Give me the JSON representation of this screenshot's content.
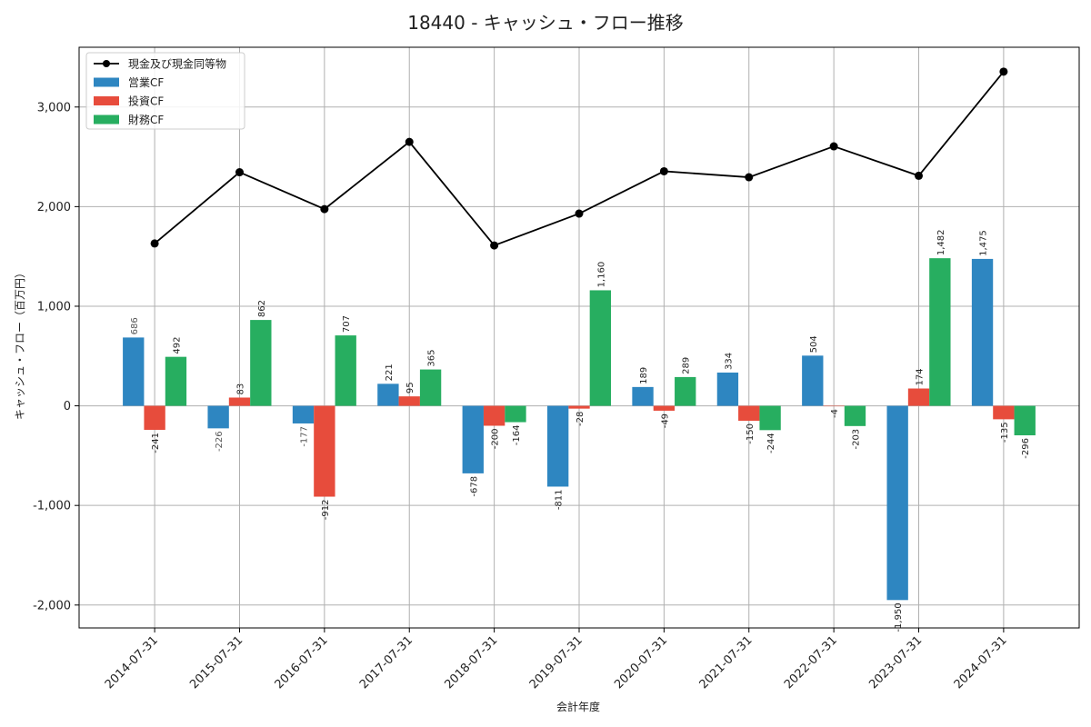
{
  "chart_data": {
    "type": "bar",
    "title": "18440 - キャッシュ・フロー推移",
    "xlabel": "会計年度",
    "ylabel": "キャッシュ・フロー（百万円）",
    "categories": [
      "2014-07-31",
      "2015-07-31",
      "2016-07-31",
      "2017-07-31",
      "2018-07-31",
      "2019-07-31",
      "2020-07-31",
      "2021-07-31",
      "2022-07-31",
      "2023-07-31",
      "2024-07-31"
    ],
    "series": [
      {
        "name": "営業CF",
        "type": "bar",
        "color": "#2e86c1",
        "values": [
          686,
          -226,
          -177,
          221,
          -678,
          -811,
          189,
          334,
          504,
          -1950,
          1475
        ],
        "labels": [
          "686",
          "-226",
          "-177",
          "221",
          "-678",
          "-811",
          "189",
          "334",
          "504",
          "-1,950",
          "1,475"
        ]
      },
      {
        "name": "投資CF",
        "type": "bar",
        "color": "#e74c3c",
        "values": [
          -241,
          83,
          -912,
          95,
          -200,
          -28,
          -49,
          -150,
          -4,
          174,
          -135
        ],
        "labels": [
          "-241",
          "83",
          "-912",
          "95",
          "-200",
          "-28",
          "-49",
          "-150",
          "-4",
          "174",
          "-135"
        ]
      },
      {
        "name": "財務CF",
        "type": "bar",
        "color": "#27ae60",
        "values": [
          492,
          862,
          707,
          365,
          -164,
          1160,
          289,
          -244,
          -203,
          1482,
          -296
        ],
        "labels": [
          "492",
          "862",
          "707",
          "365",
          "-164",
          "1,160",
          "289",
          "-244",
          "-203",
          "1,482",
          "-296"
        ]
      },
      {
        "name": "現金及び現金同等物",
        "type": "line",
        "color": "#000000",
        "values": [
          1630,
          2345,
          1975,
          2650,
          1610,
          1930,
          2355,
          2295,
          2605,
          2310,
          3355
        ]
      }
    ],
    "legend_order": [
      "現金及び現金同等物",
      "営業CF",
      "投資CF",
      "財務CF"
    ],
    "legend_position": "top-left",
    "yticks": [
      -2000,
      -1000,
      0,
      1000,
      2000,
      3000
    ],
    "ytick_labels": [
      "-2,000",
      "-1,000",
      "0",
      "1,000",
      "2,000",
      "3,000"
    ],
    "ylim": [
      -2230,
      3600
    ],
    "grid": true
  }
}
